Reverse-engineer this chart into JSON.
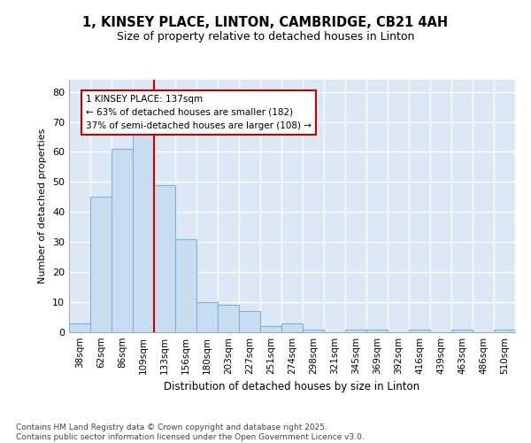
{
  "title_line1": "1, KINSEY PLACE, LINTON, CAMBRIDGE, CB21 4AH",
  "title_line2": "Size of property relative to detached houses in Linton",
  "xlabel": "Distribution of detached houses by size in Linton",
  "ylabel": "Number of detached properties",
  "bins": [
    "38sqm",
    "62sqm",
    "86sqm",
    "109sqm",
    "133sqm",
    "156sqm",
    "180sqm",
    "203sqm",
    "227sqm",
    "251sqm",
    "274sqm",
    "298sqm",
    "321sqm",
    "345sqm",
    "369sqm",
    "392sqm",
    "416sqm",
    "439sqm",
    "463sqm",
    "486sqm",
    "510sqm"
  ],
  "values": [
    3,
    45,
    61,
    67,
    49,
    31,
    10,
    9,
    7,
    2,
    3,
    1,
    0,
    1,
    1,
    0,
    1,
    0,
    1,
    0,
    1
  ],
  "bar_color": "#c9ddf0",
  "bar_edge_color": "#7fb3d9",
  "bg_color": "#dce8f5",
  "grid_color": "#ffffff",
  "vline_x_idx": 4,
  "vline_color": "#cc0000",
  "annotation_text": "1 KINSEY PLACE: 137sqm\n← 63% of detached houses are smaller (182)\n37% of semi-detached houses are larger (108) →",
  "annotation_box_color": "#ffffff",
  "annotation_box_edge": "#cc0000",
  "ylim": [
    0,
    84
  ],
  "yticks": [
    0,
    10,
    20,
    30,
    40,
    50,
    60,
    70,
    80
  ],
  "footnote": "Contains HM Land Registry data © Crown copyright and database right 2025.\nContains public sector information licensed under the Open Government Licence v3.0.",
  "fig_width": 6.0,
  "fig_height": 5.0
}
